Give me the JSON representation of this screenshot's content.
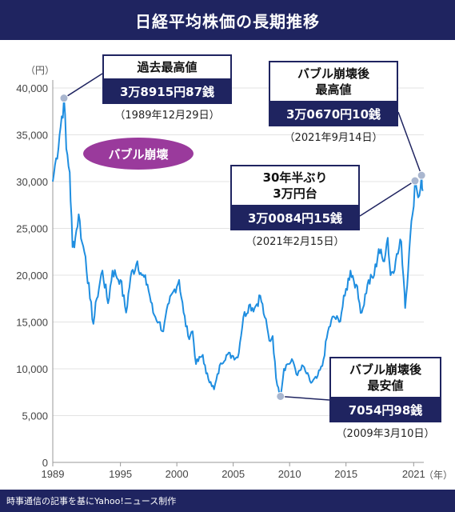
{
  "title": "日経平均株価の長期推移",
  "footer": "時事通信の記事を基にYahoo!ニュース制作",
  "bubble_label": "バブル崩壊",
  "callouts": {
    "peak": {
      "title": "過去最高値",
      "value": "3万8915円87銭",
      "date": "（1989年12月29日）"
    },
    "thirty": {
      "title": "30年半ぶり\n3万円台",
      "value": "3万0084円15銭",
      "date": "（2021年2月15日）"
    },
    "post": {
      "title": "バブル崩壊後\n最高値",
      "value": "3万0670円10銭",
      "date": "（2021年9月14日）"
    },
    "low": {
      "title": "バブル崩壊後\n最安値",
      "value": "7054円98銭",
      "date": "（2009年3月10日）"
    }
  },
  "colors": {
    "navy": "#1f2460",
    "line": "#1f8ee0",
    "bubble": "#9a3a9c"
  },
  "chart_data": {
    "type": "line",
    "title": "日経平均株価の長期推移",
    "y_unit": "（円）",
    "x_unit": "（年）",
    "ylim": [
      0,
      40000
    ],
    "xlim": [
      1989,
      2021.9
    ],
    "y_ticks": [
      0,
      5000,
      10000,
      15000,
      20000,
      25000,
      30000,
      35000,
      40000
    ],
    "y_tick_labels": [
      "0",
      "5,000",
      "10,000",
      "15,000",
      "20,000",
      "25,000",
      "30,000",
      "35,000",
      "40,000"
    ],
    "x_ticks": [
      1989,
      1995,
      2000,
      2005,
      2010,
      2015,
      2021
    ],
    "x_tick_labels": [
      "1989",
      "1995",
      "2000",
      "2005",
      "2010",
      "2015",
      "2021"
    ],
    "grid": "horizontal",
    "series": [
      {
        "x": [
          1989.0,
          1989.3,
          1989.6,
          1989.99,
          1990.2,
          1990.5,
          1990.75,
          1991.0,
          1991.3,
          1991.6,
          1991.9,
          1992.3,
          1992.6,
          1992.9,
          1993.4,
          1993.9,
          1994.3,
          1994.6,
          1995.0,
          1995.5,
          1995.9,
          1996.5,
          1996.9,
          1997.4,
          1997.9,
          1998.4,
          1998.8,
          1999.3,
          1999.8,
          2000.2,
          2000.6,
          2001.0,
          2001.4,
          2001.7,
          2002.3,
          2002.6,
          2003.0,
          2003.3,
          2003.9,
          2004.4,
          2004.9,
          2005.4,
          2005.9,
          2006.4,
          2006.9,
          2007.4,
          2007.8,
          2008.2,
          2008.5,
          2008.8,
          2009.0,
          2009.19,
          2009.5,
          2009.8,
          2010.3,
          2010.7,
          2011.2,
          2011.5,
          2011.9,
          2012.4,
          2012.9,
          2013.4,
          2013.9,
          2014.4,
          2014.9,
          2015.4,
          2015.9,
          2016.1,
          2016.4,
          2016.9,
          2017.5,
          2017.9,
          2018.3,
          2018.7,
          2018.95,
          2019.4,
          2019.9,
          2020.2,
          2020.25,
          2020.6,
          2020.9,
          2021.12,
          2021.3,
          2021.5,
          2021.7,
          2021.8
        ],
        "y": [
          30000,
          32500,
          35000,
          38916,
          33500,
          31000,
          23000,
          24000,
          26500,
          23500,
          22000,
          17500,
          14800,
          17500,
          20500,
          17000,
          20500,
          20000,
          19500,
          16000,
          19800,
          21500,
          20000,
          19000,
          16000,
          15000,
          14000,
          17000,
          18500,
          19500,
          16000,
          13500,
          14000,
          10500,
          11500,
          9500,
          8600,
          7800,
          10600,
          11500,
          11400,
          11200,
          15500,
          16800,
          16500,
          17800,
          15500,
          13000,
          13500,
          9000,
          8000,
          7055,
          10000,
          10500,
          10800,
          9300,
          10300,
          9500,
          8500,
          9000,
          10300,
          14000,
          15600,
          15000,
          17800,
          20500,
          19000,
          17500,
          16000,
          19000,
          20000,
          22800,
          21500,
          24000,
          20000,
          21500,
          23600,
          18000,
          16500,
          22500,
          26500,
          30084,
          29000,
          28500,
          30670,
          29000
        ]
      }
    ]
  }
}
